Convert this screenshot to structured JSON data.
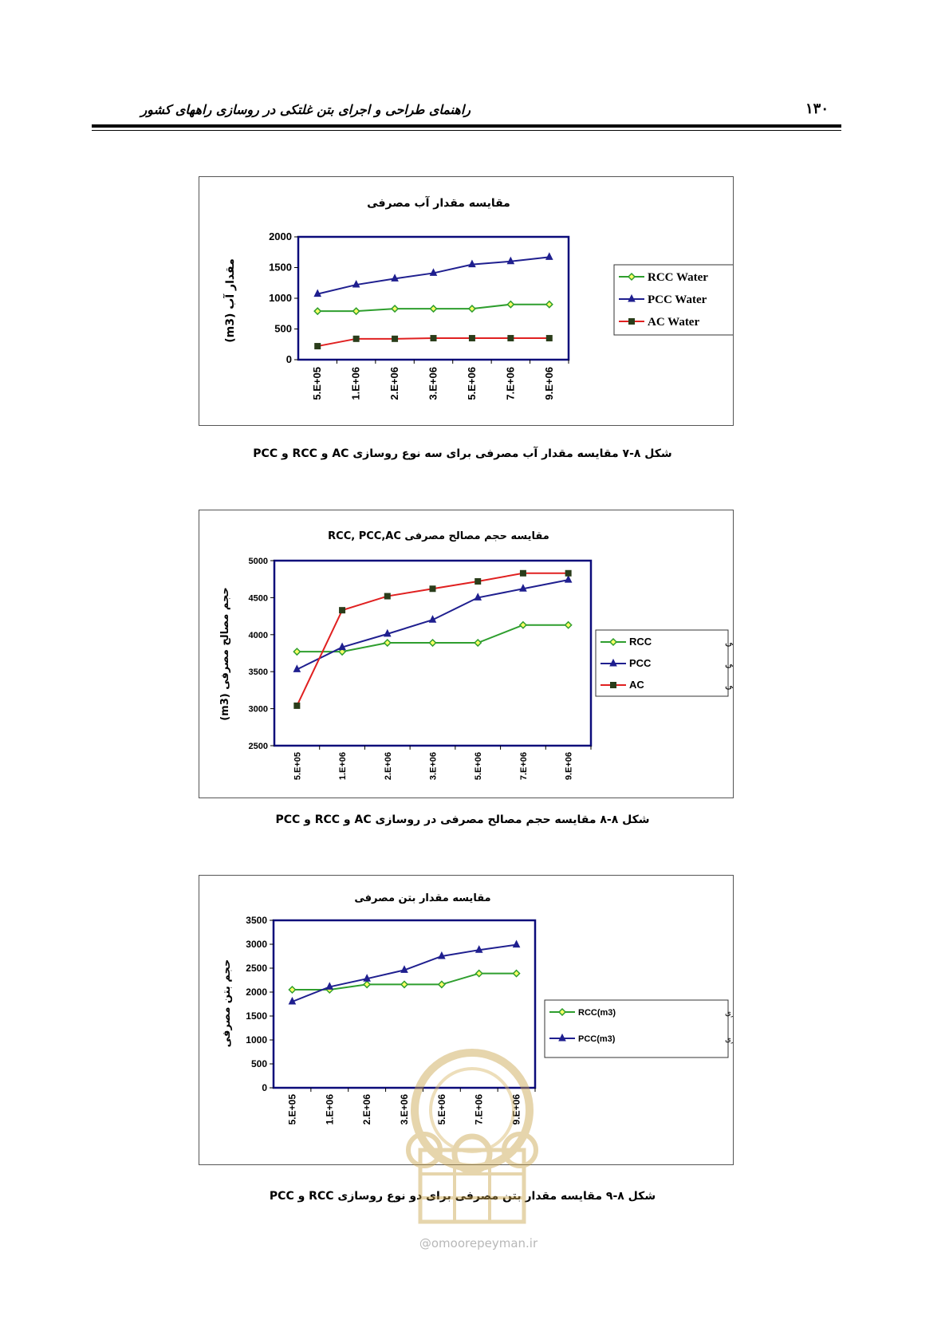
{
  "header": {
    "title": "راهنمای طراحی و اجرای بتن غلتکی در روسازی راههای کشور",
    "page_number": "۱۳۰"
  },
  "captions": [
    "شکل ۸-۷ مقایسه مقدار آب مصرفی برای سه نوع روسازی AC و RCC و PCC",
    "شکل ۸-۸ مقایسه حجم مصالح مصرفی در  روسازی AC و RCC و PCC",
    "شکل ۸-۹ مقایسه مقدار بتن مصرفی برای دو نوع روسازی RCC و PCC"
  ],
  "watermark": {
    "text": "@omoorepeyman.ir"
  },
  "colors": {
    "green": "#2e9e2e",
    "navy": "#1f1f8f",
    "red": "#e02020",
    "plot_border": "#0b0b7a"
  },
  "chart_data": [
    {
      "type": "line",
      "title": "مقایسه مقدار آب مصرفی",
      "ylabel": "مقدار آب (m3)",
      "xlabel": "",
      "categories": [
        "5.E+05",
        "1.E+06",
        "2.E+06",
        "3.E+06",
        "5.E+06",
        "7.E+06",
        "9.E+06"
      ],
      "ylim": [
        0,
        2000
      ],
      "yticks": [
        0,
        500,
        1000,
        1500,
        2000
      ],
      "legend_position": "right",
      "grid": false,
      "series": [
        {
          "name": "RCC Water",
          "color": "#2e9e2e",
          "marker": "diamond",
          "values": [
            790,
            790,
            830,
            830,
            830,
            900,
            900
          ]
        },
        {
          "name": "PCC Water",
          "color": "#1f1f8f",
          "marker": "triangle",
          "values": [
            1070,
            1220,
            1320,
            1410,
            1550,
            1600,
            1670
          ]
        },
        {
          "name": "AC Water",
          "color": "#e02020",
          "marker": "square",
          "values": [
            220,
            340,
            340,
            350,
            350,
            350,
            350
          ]
        }
      ]
    },
    {
      "type": "line",
      "title": "مقایسه حجم مصالح مصرفی RCC, PCC,AC",
      "ylabel": "حجم مصالح مصرفی (m3)",
      "xlabel": "",
      "categories": [
        "5.E+05",
        "1.E+06",
        "2.E+06",
        "3.E+06",
        "5.E+06",
        "7.E+06",
        "9.E+06"
      ],
      "ylim": [
        2500,
        5000
      ],
      "yticks": [
        2500,
        3000,
        3500,
        4000,
        4500,
        5000
      ],
      "legend_position": "right",
      "grid": false,
      "series": [
        {
          "name": "RCC",
          "suffix": "مصالح مصرفی",
          "color": "#2e9e2e",
          "marker": "diamond",
          "values": [
            3770,
            3770,
            3890,
            3890,
            3890,
            4130,
            4130
          ]
        },
        {
          "name": "PCC",
          "suffix": "مصالح مصرفی",
          "color": "#1f1f8f",
          "marker": "triangle",
          "values": [
            3530,
            3830,
            4010,
            4200,
            4500,
            4620,
            4740
          ]
        },
        {
          "name": "AC",
          "suffix": "مصالح مصرفی",
          "color": "#e02020",
          "marker": "square",
          "values": [
            3040,
            4330,
            4520,
            4620,
            4720,
            4830,
            4830
          ]
        }
      ]
    },
    {
      "type": "line",
      "title": "مقایسه مقدار بتن مصرفی",
      "ylabel": "حجم بتن مصرفی",
      "xlabel": "",
      "categories": [
        "5.E+05",
        "1.E+06",
        "2.E+06",
        "3.E+06",
        "5.E+06",
        "7.E+06",
        "9.E+06"
      ],
      "ylim": [
        0,
        3500
      ],
      "yticks": [
        0,
        500,
        1000,
        1500,
        2000,
        2500,
        3000,
        3500
      ],
      "legend_position": "right",
      "grid": false,
      "series": [
        {
          "name": "RCC(m3)",
          "suffix": "مقدار بتن مصرفی روسازی",
          "color": "#2e9e2e",
          "marker": "diamond",
          "values": [
            2050,
            2050,
            2160,
            2160,
            2160,
            2390,
            2390
          ]
        },
        {
          "name": "PCC(m3)",
          "suffix": "مقدار بتن مصرفی روسازی",
          "color": "#1f1f8f",
          "marker": "triangle",
          "values": [
            1800,
            2110,
            2280,
            2460,
            2750,
            2880,
            2990
          ]
        }
      ]
    }
  ]
}
